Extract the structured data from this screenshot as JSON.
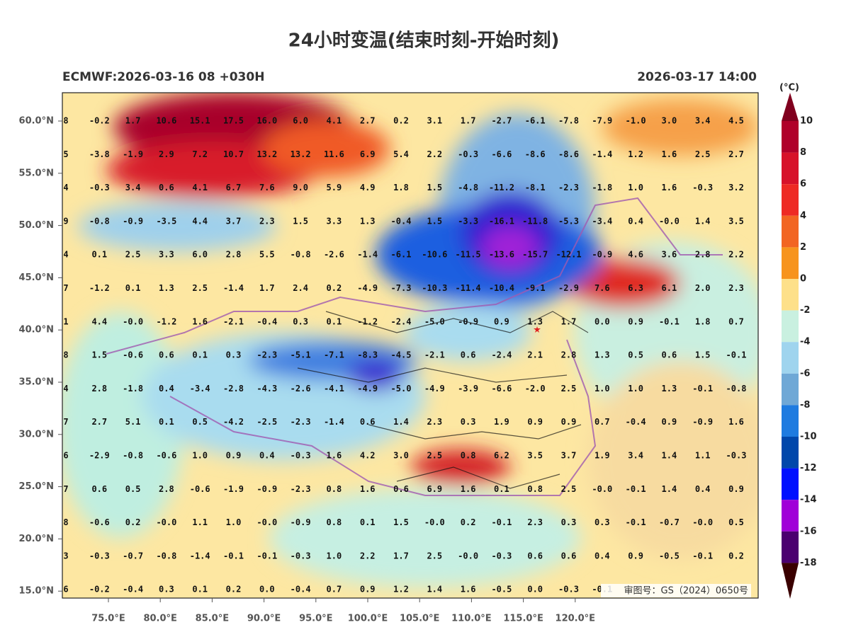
{
  "header": {
    "title": "24小时变温(结束时刻-开始时刻)",
    "model_run": "ECMWF:2026-03-16 08 +030H",
    "valid_time": "2026-03-17 14:00"
  },
  "axes": {
    "lat_labels": [
      "60.0°N",
      "55.0°N",
      "50.0°N",
      "45.0°N",
      "40.0°N",
      "35.0°N",
      "30.0°N",
      "25.0°N",
      "20.0°N",
      "15.0°N"
    ],
    "lon_labels": [
      "75.0°E",
      "80.0°E",
      "85.0°E",
      "90.0°E",
      "95.0°E",
      "100.0°E",
      "105.0°E",
      "110.0°E",
      "115.0°E",
      "120.0°E"
    ]
  },
  "colorbar": {
    "unit": "(°C)",
    "labels": [
      "10",
      "8",
      "6",
      "4",
      "2",
      "0",
      "-2",
      "-4",
      "-6",
      "-8",
      "-10",
      "-12",
      "-14",
      "-16",
      "-18"
    ]
  },
  "grid": {
    "rows": [
      [
        "8",
        "-0.2",
        "1.7",
        "10.6",
        "15.1",
        "17.5",
        "16.0",
        "6.0",
        "4.1",
        "2.7",
        "0.2",
        "3.1",
        "1.7",
        "-2.7",
        "-6.1",
        "-7.8",
        "-7.9",
        "-1.0",
        "3.0",
        "3.4",
        "4.5"
      ],
      [
        "5",
        "-3.8",
        "-1.9",
        "2.9",
        "7.2",
        "10.7",
        "13.2",
        "13.2",
        "11.6",
        "6.9",
        "5.4",
        "2.2",
        "-0.3",
        "-6.6",
        "-8.6",
        "-8.6",
        "-1.4",
        "1.2",
        "1.6",
        "2.5",
        "2.7"
      ],
      [
        "4",
        "-0.3",
        "3.4",
        "0.6",
        "4.1",
        "6.7",
        "7.6",
        "9.0",
        "5.9",
        "4.9",
        "1.8",
        "1.5",
        "-4.8",
        "-11.2",
        "-8.1",
        "-2.3",
        "-1.8",
        "1.0",
        "1.6",
        "-0.3",
        "3.2"
      ],
      [
        "9",
        "-0.8",
        "-0.9",
        "-3.5",
        "4.4",
        "3.7",
        "2.3",
        "1.5",
        "3.3",
        "1.3",
        "-0.4",
        "1.5",
        "-3.3",
        "-16.1",
        "-11.8",
        "-5.3",
        "-3.4",
        "0.4",
        "-0.0",
        "1.4",
        "3.5"
      ],
      [
        "4",
        "0.1",
        "2.5",
        "3.3",
        "6.0",
        "2.8",
        "5.5",
        "-0.8",
        "-2.6",
        "-1.4",
        "-6.1",
        "-10.6",
        "-11.5",
        "-13.6",
        "-15.7",
        "-12.1",
        "-0.9",
        "4.6",
        "3.6",
        "2.8",
        "2.2"
      ],
      [
        "7",
        "-1.2",
        "0.1",
        "1.3",
        "2.5",
        "-1.4",
        "1.7",
        "2.4",
        "0.2",
        "-4.9",
        "-7.3",
        "-10.3",
        "-11.4",
        "-10.4",
        "-9.1",
        "-2.9",
        "7.6",
        "6.3",
        "6.1",
        "2.0",
        "2.3"
      ],
      [
        "1",
        "4.4",
        "-0.0",
        "-1.2",
        "1.6",
        "-2.1",
        "-0.4",
        "0.3",
        "0.1",
        "-1.2",
        "-2.4",
        "-5.0",
        "-0.9",
        "0.9",
        "1.3",
        "1.7",
        "0.0",
        "0.9",
        "-0.1",
        "1.8",
        "0.7"
      ],
      [
        "8",
        "1.5",
        "-0.6",
        "0.6",
        "0.1",
        "0.3",
        "-2.3",
        "-5.1",
        "-7.1",
        "-8.3",
        "-4.5",
        "-2.1",
        "0.6",
        "-2.4",
        "2.1",
        "2.8",
        "1.3",
        "0.5",
        "0.6",
        "1.5",
        "-0.1"
      ],
      [
        "4",
        "2.8",
        "-1.8",
        "0.4",
        "-3.4",
        "-2.8",
        "-4.3",
        "-2.6",
        "-4.1",
        "-4.9",
        "-5.0",
        "-4.9",
        "-3.9",
        "-6.6",
        "-2.0",
        "2.5",
        "1.0",
        "1.0",
        "1.3",
        "-0.1",
        "-0.8"
      ],
      [
        "7",
        "2.7",
        "5.1",
        "0.1",
        "0.5",
        "-4.2",
        "-2.5",
        "-2.3",
        "-1.4",
        "0.6",
        "1.4",
        "2.3",
        "0.3",
        "1.9",
        "0.9",
        "0.9",
        "0.7",
        "-0.4",
        "0.9",
        "-0.9",
        "1.6"
      ],
      [
        "6",
        "-2.9",
        "-0.8",
        "-0.6",
        "1.0",
        "0.9",
        "0.4",
        "-0.3",
        "1.6",
        "4.2",
        "3.0",
        "2.5",
        "0.8",
        "6.2",
        "3.5",
        "3.7",
        "1.9",
        "3.4",
        "1.4",
        "1.1",
        "-0.3"
      ],
      [
        "7",
        "0.6",
        "0.5",
        "2.8",
        "-0.6",
        "-1.9",
        "-0.9",
        "-2.3",
        "0.8",
        "1.6",
        "0.6",
        "6.9",
        "1.6",
        "0.1",
        "0.8",
        "2.5",
        "-0.0",
        "-0.1",
        "1.4",
        "0.4",
        "0.9"
      ],
      [
        "8",
        "-0.6",
        "0.2",
        "-0.0",
        "1.1",
        "1.0",
        "-0.0",
        "-0.9",
        "0.8",
        "0.1",
        "1.5",
        "-0.0",
        "0.2",
        "-0.1",
        "2.3",
        "0.3",
        "0.3",
        "-0.1",
        "-0.7",
        "-0.0",
        "0.5"
      ],
      [
        "3",
        "-0.3",
        "-0.7",
        "-0.8",
        "-1.4",
        "-0.1",
        "-0.1",
        "-0.3",
        "1.0",
        "2.2",
        "1.7",
        "2.5",
        "-0.0",
        "-0.3",
        "0.6",
        "0.6",
        "0.4",
        "0.9",
        "-0.5",
        "-0.1",
        "0.2"
      ],
      [
        "6",
        "-0.2",
        "-0.4",
        "0.3",
        "0.1",
        "0.2",
        "0.0",
        "-0.4",
        "0.7",
        "0.9",
        "1.2",
        "1.4",
        "1.6",
        "-0.5",
        "0.0",
        "-0.3",
        "-0.1"
      ]
    ]
  },
  "review_number": "审图号：GS（2024）0650号"
}
